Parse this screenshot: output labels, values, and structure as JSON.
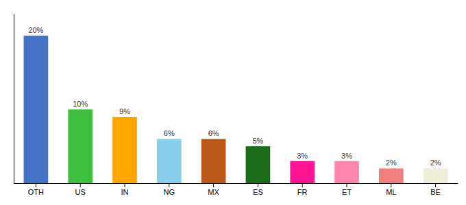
{
  "chart_data": {
    "type": "bar",
    "categories": [
      "OTH",
      "US",
      "IN",
      "NG",
      "MX",
      "ES",
      "FR",
      "ET",
      "ML",
      "BE"
    ],
    "values": [
      20,
      10,
      9,
      6,
      6,
      5,
      3,
      3,
      2,
      2
    ],
    "value_labels": [
      "20%",
      "10%",
      "9%",
      "6%",
      "6%",
      "5%",
      "3%",
      "3%",
      "2%",
      "2%"
    ],
    "colors": [
      "#4472C4",
      "#3DBF3D",
      "#FFA500",
      "#87CEEB",
      "#B8591A",
      "#1A6B1A",
      "#FF1493",
      "#FF85B0",
      "#F08080",
      "#F0EDD8"
    ],
    "ylim": [
      0,
      23
    ],
    "data_labels": true,
    "tick_labels": "x",
    "grid": false
  }
}
